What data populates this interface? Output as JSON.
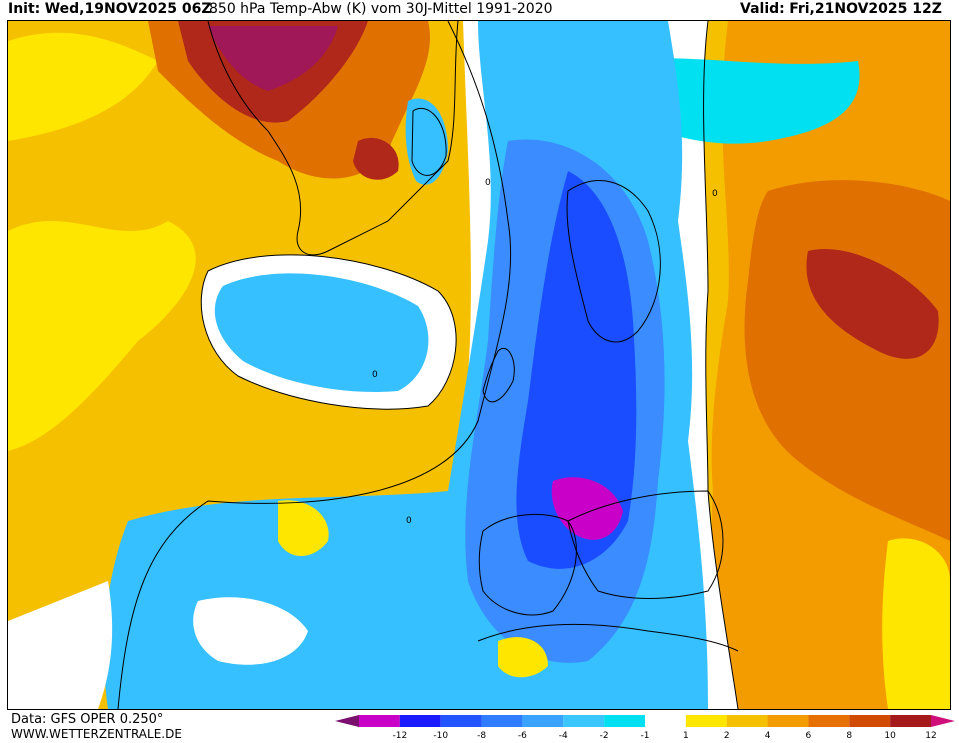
{
  "header": {
    "init_label": "Init:",
    "init_value": "Wed,19NOV2025 06Z",
    "title": "850 hPa Temp-Abw (K) vom 30J-Mittel 1991-2020",
    "valid_label": "Valid:",
    "valid_value": "Fri,21NOV2025 12Z"
  },
  "footer": {
    "data_source": "Data: GFS OPER 0.250°",
    "website": "WWW.WETTERZENTRALE.DE"
  },
  "legend": {
    "ticks": [
      "-12",
      "-10",
      "-8",
      "-6",
      "-4",
      "-2",
      "-1",
      "1",
      "2",
      "4",
      "6",
      "8",
      "10",
      "12"
    ],
    "colors": [
      "#7a0f6e",
      "#c800c8",
      "#1a1aff",
      "#2255ff",
      "#2f7cff",
      "#3aa2ff",
      "#3cc6ff",
      "#00e0f0",
      "#ffffff",
      "#ffe600",
      "#f5c000",
      "#f39c00",
      "#e67000",
      "#d04a00",
      "#a51a1a",
      "#d0107a"
    ]
  },
  "map": {
    "contour_label": "0",
    "colors": {
      "strong_cold": "#c800c8",
      "cold_blue": "#1a4dff",
      "mid_blue": "#3a8cff",
      "light_blue": "#36c0ff",
      "cyan": "#00e0f0",
      "neutral": "#ffffff",
      "warm_yellow": "#ffe600",
      "warm_gold": "#f5c000",
      "warm_orange": "#f39c00",
      "hot_orange": "#e07000",
      "hot_red": "#b0281a",
      "extreme": "#a01858"
    }
  }
}
